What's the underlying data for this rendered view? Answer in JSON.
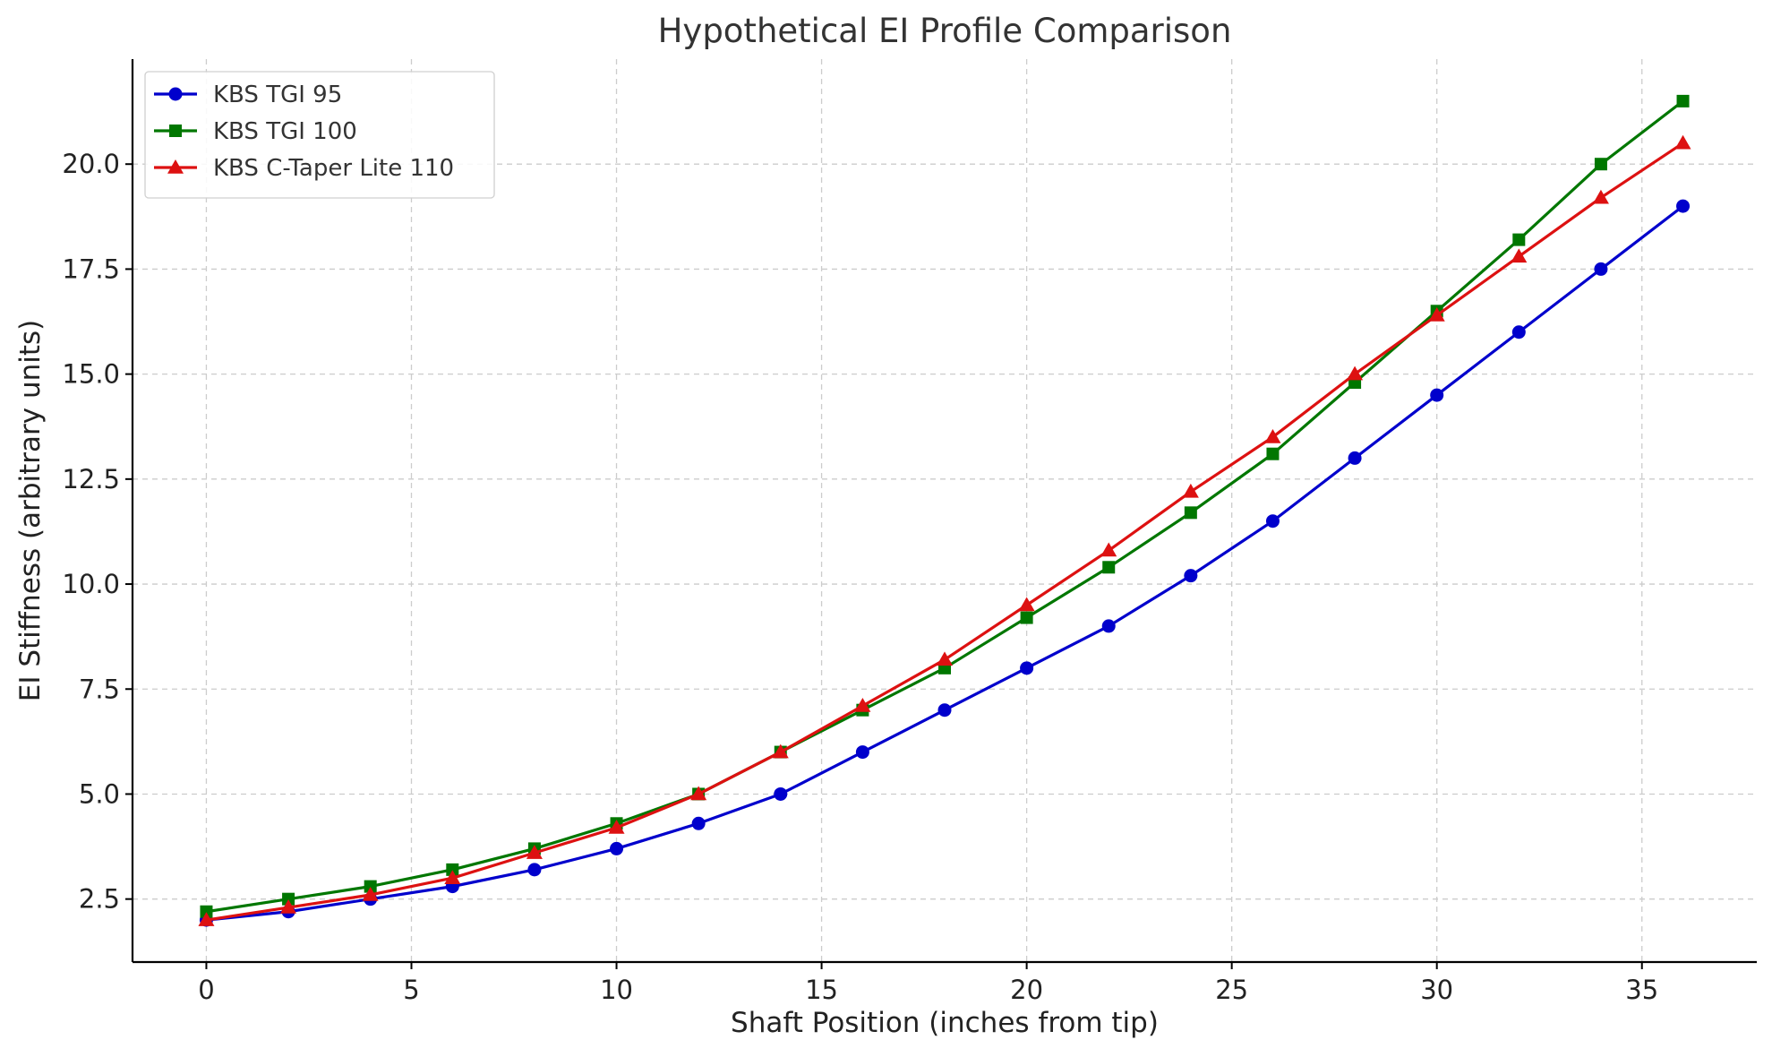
{
  "chart_data": {
    "type": "line",
    "title": "Hypothetical EI Profile Comparison",
    "xlabel": "Shaft Position (inches from tip)",
    "ylabel": "EI Stiffness (arbitrary units)",
    "xlim": [
      -1.8,
      37.8
    ],
    "ylim": [
      1.0,
      22.5
    ],
    "xticks": [
      0,
      5,
      10,
      15,
      20,
      25,
      30,
      35
    ],
    "yticks": [
      2.5,
      5.0,
      7.5,
      10.0,
      12.5,
      15.0,
      17.5,
      20.0
    ],
    "xtick_labels": [
      "0",
      "5",
      "10",
      "15",
      "20",
      "25",
      "30",
      "35"
    ],
    "ytick_labels": [
      "2.5",
      "5.0",
      "7.5",
      "10.0",
      "12.5",
      "15.0",
      "17.5",
      "20.0"
    ],
    "grid": true,
    "legend_position": "top-left",
    "x": [
      0,
      2,
      4,
      6,
      8,
      10,
      12,
      14,
      16,
      18,
      20,
      22,
      24,
      26,
      28,
      30,
      32,
      34,
      36
    ],
    "series": [
      {
        "name": "KBS TGI 95",
        "color": "#0000cc",
        "marker": "circle",
        "values": [
          2.0,
          2.2,
          2.5,
          2.8,
          3.2,
          3.7,
          4.3,
          5.0,
          6.0,
          7.0,
          8.0,
          9.0,
          10.2,
          11.5,
          13.0,
          14.5,
          16.0,
          17.5,
          19.0
        ]
      },
      {
        "name": "KBS TGI 100",
        "color": "#007700",
        "marker": "square",
        "values": [
          2.2,
          2.5,
          2.8,
          3.2,
          3.7,
          4.3,
          5.0,
          6.0,
          7.0,
          8.0,
          9.2,
          10.4,
          11.7,
          13.1,
          14.8,
          16.5,
          18.2,
          20.0,
          21.5
        ]
      },
      {
        "name": "KBS C-Taper Lite 110",
        "color": "#dd1111",
        "marker": "triangle",
        "values": [
          2.0,
          2.3,
          2.6,
          3.0,
          3.6,
          4.2,
          5.0,
          6.0,
          7.1,
          8.2,
          9.5,
          10.8,
          12.2,
          13.5,
          15.0,
          16.4,
          17.8,
          19.2,
          20.5
        ]
      }
    ]
  }
}
